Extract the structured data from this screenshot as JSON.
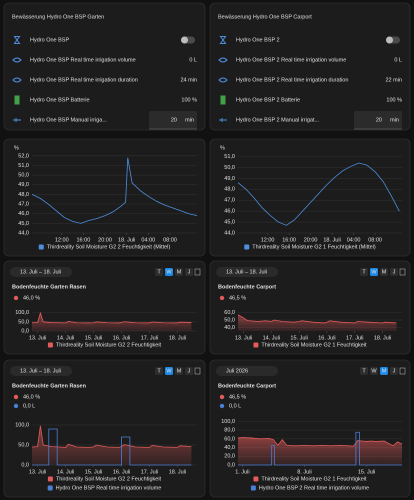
{
  "entity_cards": [
    {
      "title": "Bewässerung Hydro One BSP Garten",
      "rows": [
        {
          "name": "Hydro One BSP",
          "kind": "toggle"
        },
        {
          "name": "Hydro One BSP Real time irrigation volume",
          "value": "0 L"
        },
        {
          "name": "Hydro One BSP Real time irrigation duration",
          "value": "24 min"
        },
        {
          "name": "Hydro One BSP Batterie",
          "value": "100 %"
        },
        {
          "name": "Hydro One BSP Manual irriga...",
          "kind": "input",
          "value": "20",
          "unit": "min"
        }
      ]
    },
    {
      "title": "Bewässerung Hydro One BSP Carport",
      "rows": [
        {
          "name": "Hydro One BSP 2",
          "kind": "toggle"
        },
        {
          "name": "Hydro One BSP 2 Real time irrigation volume",
          "value": "0 L"
        },
        {
          "name": "Hydro One BSP 2 Real time irrigation duration",
          "value": "22 min"
        },
        {
          "name": "Hydro One BSP 2 Batterie",
          "value": "100 %"
        },
        {
          "name": "Hydro One BSP 2 Manual irrigat...",
          "kind": "input",
          "value": "20",
          "unit": "min"
        }
      ]
    }
  ],
  "chart_data": [
    {
      "type": "line",
      "y_label": "%",
      "grid": true,
      "xtick_color": "#9e9e9e",
      "xlim": [
        6.5,
        37
      ],
      "xticks": [
        {
          "value": 12,
          "label": "12:00"
        },
        {
          "value": 16,
          "label": "16:00"
        },
        {
          "value": 20,
          "label": "20:00"
        },
        {
          "value": 24,
          "label": "18. Juli"
        },
        {
          "value": 28,
          "label": "04:00"
        },
        {
          "value": 32,
          "label": "08:00"
        }
      ],
      "ylim": [
        44,
        52.5
      ],
      "yticks": [
        {
          "value": 44,
          "label": "44,0"
        },
        {
          "value": 45,
          "label": "45,0"
        },
        {
          "value": 46,
          "label": "46,0"
        },
        {
          "value": 47,
          "label": "47,0"
        },
        {
          "value": 48,
          "label": "48,0"
        },
        {
          "value": 49,
          "label": "49,0"
        },
        {
          "value": 50,
          "label": "50,0"
        },
        {
          "value": 51,
          "label": "51,0"
        },
        {
          "value": 52,
          "label": "52,0"
        }
      ],
      "series": [
        {
          "name": "Thirdreality Soil Moisture G2 2 Feuchtigkeit (Mittel)",
          "color": "#4e8fe0",
          "x": [
            6.5,
            8,
            9.5,
            11,
            12.5,
            14,
            15.5,
            17,
            18.5,
            20,
            21.5,
            23,
            23.8,
            24.2,
            25,
            26.5,
            28,
            29.5,
            31,
            32.5,
            34,
            35.5,
            37
          ],
          "values": [
            48.0,
            47.6,
            47.0,
            46.3,
            45.6,
            45.2,
            45.0,
            45.3,
            45.5,
            45.8,
            46.2,
            46.8,
            47.2,
            51.8,
            49.2,
            48.4,
            47.8,
            47.3,
            46.9,
            46.6,
            46.3,
            46.0,
            45.8
          ]
        }
      ]
    },
    {
      "type": "line",
      "y_label": "%",
      "grid": true,
      "xtick_color": "#9e9e9e",
      "xlim": [
        6.5,
        37
      ],
      "xticks": [
        {
          "value": 12,
          "label": "12:00"
        },
        {
          "value": 16,
          "label": "16:00"
        },
        {
          "value": 20,
          "label": "20:00"
        },
        {
          "value": 24,
          "label": "18. Juli"
        },
        {
          "value": 28,
          "label": "04:00"
        },
        {
          "value": 32,
          "label": "08:00"
        }
      ],
      "ylim": [
        44,
        51.5
      ],
      "yticks": [
        {
          "value": 44,
          "label": "44,0"
        },
        {
          "value": 45,
          "label": "45,0"
        },
        {
          "value": 46,
          "label": "46,0"
        },
        {
          "value": 47,
          "label": "47,0"
        },
        {
          "value": 48,
          "label": "48,0"
        },
        {
          "value": 49,
          "label": "49,0"
        },
        {
          "value": 50,
          "label": "50,0"
        },
        {
          "value": 51,
          "label": "51,0"
        }
      ],
      "series": [
        {
          "name": "Thirdreality Soil Moisture G2 1 Feuchtigkeit (Mittel)",
          "color": "#4e8fe0",
          "x": [
            6.5,
            8,
            9.5,
            11,
            12.5,
            14,
            15.5,
            17,
            18.5,
            20,
            21.5,
            23,
            24.5,
            26,
            27.5,
            29,
            30.5,
            32,
            33.5,
            35,
            36.5
          ],
          "values": [
            48.6,
            48.0,
            47.2,
            46.3,
            45.6,
            45.0,
            44.7,
            45.2,
            46.0,
            46.8,
            47.6,
            48.4,
            49.1,
            49.7,
            50.1,
            50.4,
            50.2,
            49.6,
            48.7,
            47.4,
            46.0
          ]
        }
      ]
    },
    {
      "type": "area",
      "date_range": "13. Juli – 18. Juli",
      "period_buttons": [
        "T",
        "W",
        "M",
        "J"
      ],
      "active_period": "W",
      "title": "Bodenfeuchte Garten Rasen",
      "grid": true,
      "xtick_color": "#29b6f6",
      "xlim": [
        12.8,
        18.7
      ],
      "xticks": [
        {
          "value": 13,
          "label": "13. Juli"
        },
        {
          "value": 14,
          "label": "14. Juli"
        },
        {
          "value": 15,
          "label": "15. Juli"
        },
        {
          "value": 16,
          "label": "16. Juli"
        },
        {
          "value": 17,
          "label": "17. Juli"
        },
        {
          "value": 18,
          "label": "18. Juli"
        }
      ],
      "ylim": [
        0,
        120
      ],
      "yticks": [
        {
          "value": 0,
          "label": "0,0"
        },
        {
          "value": 50,
          "label": "50,0"
        },
        {
          "value": 100,
          "label": "100,0"
        }
      ],
      "series": [
        {
          "name": "Thirdreality Soil Moisture G2 2 Feuchtigkeit",
          "color": "#e35b5b",
          "area": true,
          "current_label": "46,0 %",
          "x": [
            12.8,
            13.0,
            13.1,
            13.2,
            13.5,
            13.8,
            14.0,
            14.1,
            14.4,
            14.8,
            15.0,
            15.1,
            15.5,
            15.9,
            16.0,
            16.1,
            16.5,
            17.0,
            17.1,
            17.5,
            18.0,
            18.1,
            18.5
          ],
          "values": [
            45,
            46,
            98,
            50,
            46,
            45,
            44,
            52,
            45,
            44,
            45,
            50,
            45,
            44,
            46,
            51,
            45,
            44,
            49,
            45,
            44,
            48,
            46
          ]
        }
      ]
    },
    {
      "type": "area",
      "date_range": "13. Juli – 18. Juli",
      "period_buttons": [
        "T",
        "W",
        "M",
        "J"
      ],
      "active_period": "W",
      "title": "Bodenfeuchte Carport",
      "grid": true,
      "xtick_color": "#29b6f6",
      "xlim": [
        12.8,
        18.7
      ],
      "xticks": [
        {
          "value": 13,
          "label": "13. Juli"
        },
        {
          "value": 14,
          "label": "14. Juli"
        },
        {
          "value": 15,
          "label": "15. Juli"
        },
        {
          "value": 16,
          "label": "16. Juli"
        },
        {
          "value": 17,
          "label": "17. Juli"
        },
        {
          "value": 18,
          "label": "18. Juli"
        }
      ],
      "ylim": [
        35,
        65
      ],
      "yticks": [
        {
          "value": 40,
          "label": "40,0"
        },
        {
          "value": 50,
          "label": "50,0"
        },
        {
          "value": 60,
          "label": "60,0"
        }
      ],
      "series": [
        {
          "name": "Thirdreality Soil Moisture G2 1 Feuchtigkeit",
          "color": "#e35b5b",
          "area": true,
          "current_label": "46,5 %",
          "x": [
            12.8,
            13.0,
            13.1,
            13.2,
            13.5,
            13.8,
            14.0,
            14.1,
            14.4,
            14.8,
            15.0,
            15.1,
            15.5,
            15.9,
            16.0,
            16.1,
            16.5,
            17.0,
            17.1,
            17.5,
            18.0,
            18.1,
            18.5
          ],
          "values": [
            57,
            53,
            50,
            49,
            48,
            49,
            48,
            50,
            48,
            47,
            48,
            49,
            47,
            46,
            47,
            49,
            47,
            46,
            48,
            47,
            46,
            47,
            46
          ]
        }
      ]
    },
    {
      "type": "area",
      "date_range": "13. Juli – 18. Juli",
      "period_buttons": [
        "T",
        "W",
        "M",
        "J"
      ],
      "active_period": "W",
      "title": "Bodenfeuchte Garten Rasen",
      "grid": true,
      "xtick_color": "#29b6f6",
      "xlim": [
        12.8,
        18.7
      ],
      "xticks": [
        {
          "value": 13,
          "label": "13. Juli"
        },
        {
          "value": 14,
          "label": "14. Juli"
        },
        {
          "value": 15,
          "label": "15. Juli"
        },
        {
          "value": 16,
          "label": "16. Juli"
        },
        {
          "value": 17,
          "label": "17. Juli"
        },
        {
          "value": 18,
          "label": "18. Juli"
        }
      ],
      "ylim": [
        0,
        120
      ],
      "yticks": [
        {
          "value": 0,
          "label": "0,0"
        },
        {
          "value": 50,
          "label": "50,0"
        },
        {
          "value": 100,
          "label": "100,0"
        }
      ],
      "series": [
        {
          "name": "Thirdreality Soil Moisture G2 2 Feuchtigkeit",
          "color": "#e35b5b",
          "area": true,
          "current_label": "46,0 %",
          "x": [
            12.8,
            13.0,
            13.1,
            13.2,
            13.5,
            13.8,
            14.0,
            14.1,
            14.4,
            14.8,
            15.0,
            15.1,
            15.5,
            15.9,
            16.0,
            16.1,
            16.5,
            17.0,
            17.1,
            17.5,
            18.0,
            18.1,
            18.5
          ],
          "values": [
            45,
            46,
            98,
            50,
            46,
            45,
            44,
            52,
            45,
            44,
            45,
            50,
            45,
            44,
            46,
            51,
            45,
            44,
            49,
            45,
            44,
            48,
            46
          ]
        },
        {
          "name": "Hydro One BSP Real time irrigation volume",
          "color": "#4a7fd6",
          "current_label": "0,0 L",
          "x": [
            12.8,
            13.4,
            13.4,
            13.7,
            13.7,
            16.0,
            16.0,
            16.3,
            16.3,
            18.5
          ],
          "values": [
            0,
            0,
            90,
            90,
            0,
            0,
            70,
            70,
            0,
            0
          ]
        }
      ]
    },
    {
      "type": "area",
      "date_range": "Juli 2026",
      "period_buttons": [
        "T",
        "W",
        "M",
        "J"
      ],
      "active_period": "M",
      "title": "Bodenfeuchte Carport",
      "grid": true,
      "xtick_color": "#29b6f6",
      "xlim": [
        0.5,
        19
      ],
      "xticks": [
        {
          "value": 1,
          "label": "1. Juli"
        },
        {
          "value": 8,
          "label": "8. Juli"
        },
        {
          "value": 15,
          "label": "15. Juli"
        }
      ],
      "ylim": [
        0,
        110
      ],
      "yticks": [
        {
          "value": 0,
          "label": "0,0"
        },
        {
          "value": 20,
          "label": "20,0"
        },
        {
          "value": 40,
          "label": "40,0"
        },
        {
          "value": 60,
          "label": "60,0"
        },
        {
          "value": 80,
          "label": "80,0"
        },
        {
          "value": 100,
          "label": "100,0"
        }
      ],
      "series": [
        {
          "name": "Thirdreality Soil Moisture G2 1 Feuchtigkeit",
          "color": "#e35b5b",
          "area": true,
          "current_label": "46,5 %",
          "x": [
            0.5,
            1,
            2,
            3,
            4,
            4.5,
            5,
            5.5,
            6,
            7,
            8,
            9,
            10,
            11,
            12,
            13,
            13.5,
            14,
            14.5,
            15,
            15.5,
            16,
            17,
            18,
            18.5,
            19
          ],
          "values": [
            62,
            63,
            62,
            60,
            61,
            58,
            45,
            58,
            45,
            44,
            45,
            44,
            45,
            44,
            45,
            44,
            43,
            56,
            55,
            54,
            55,
            54,
            55,
            44,
            53,
            48
          ]
        },
        {
          "name": "Hydro One BSP 2 Real time irrigation volume",
          "color": "#4a7fd6",
          "current_label": "0,0 L",
          "x": [
            0.5,
            4.3,
            4.3,
            4.6,
            4.6,
            13.8,
            13.8,
            14.2,
            14.2,
            19
          ],
          "values": [
            0,
            0,
            45,
            45,
            0,
            0,
            75,
            75,
            0,
            0
          ]
        }
      ]
    }
  ]
}
